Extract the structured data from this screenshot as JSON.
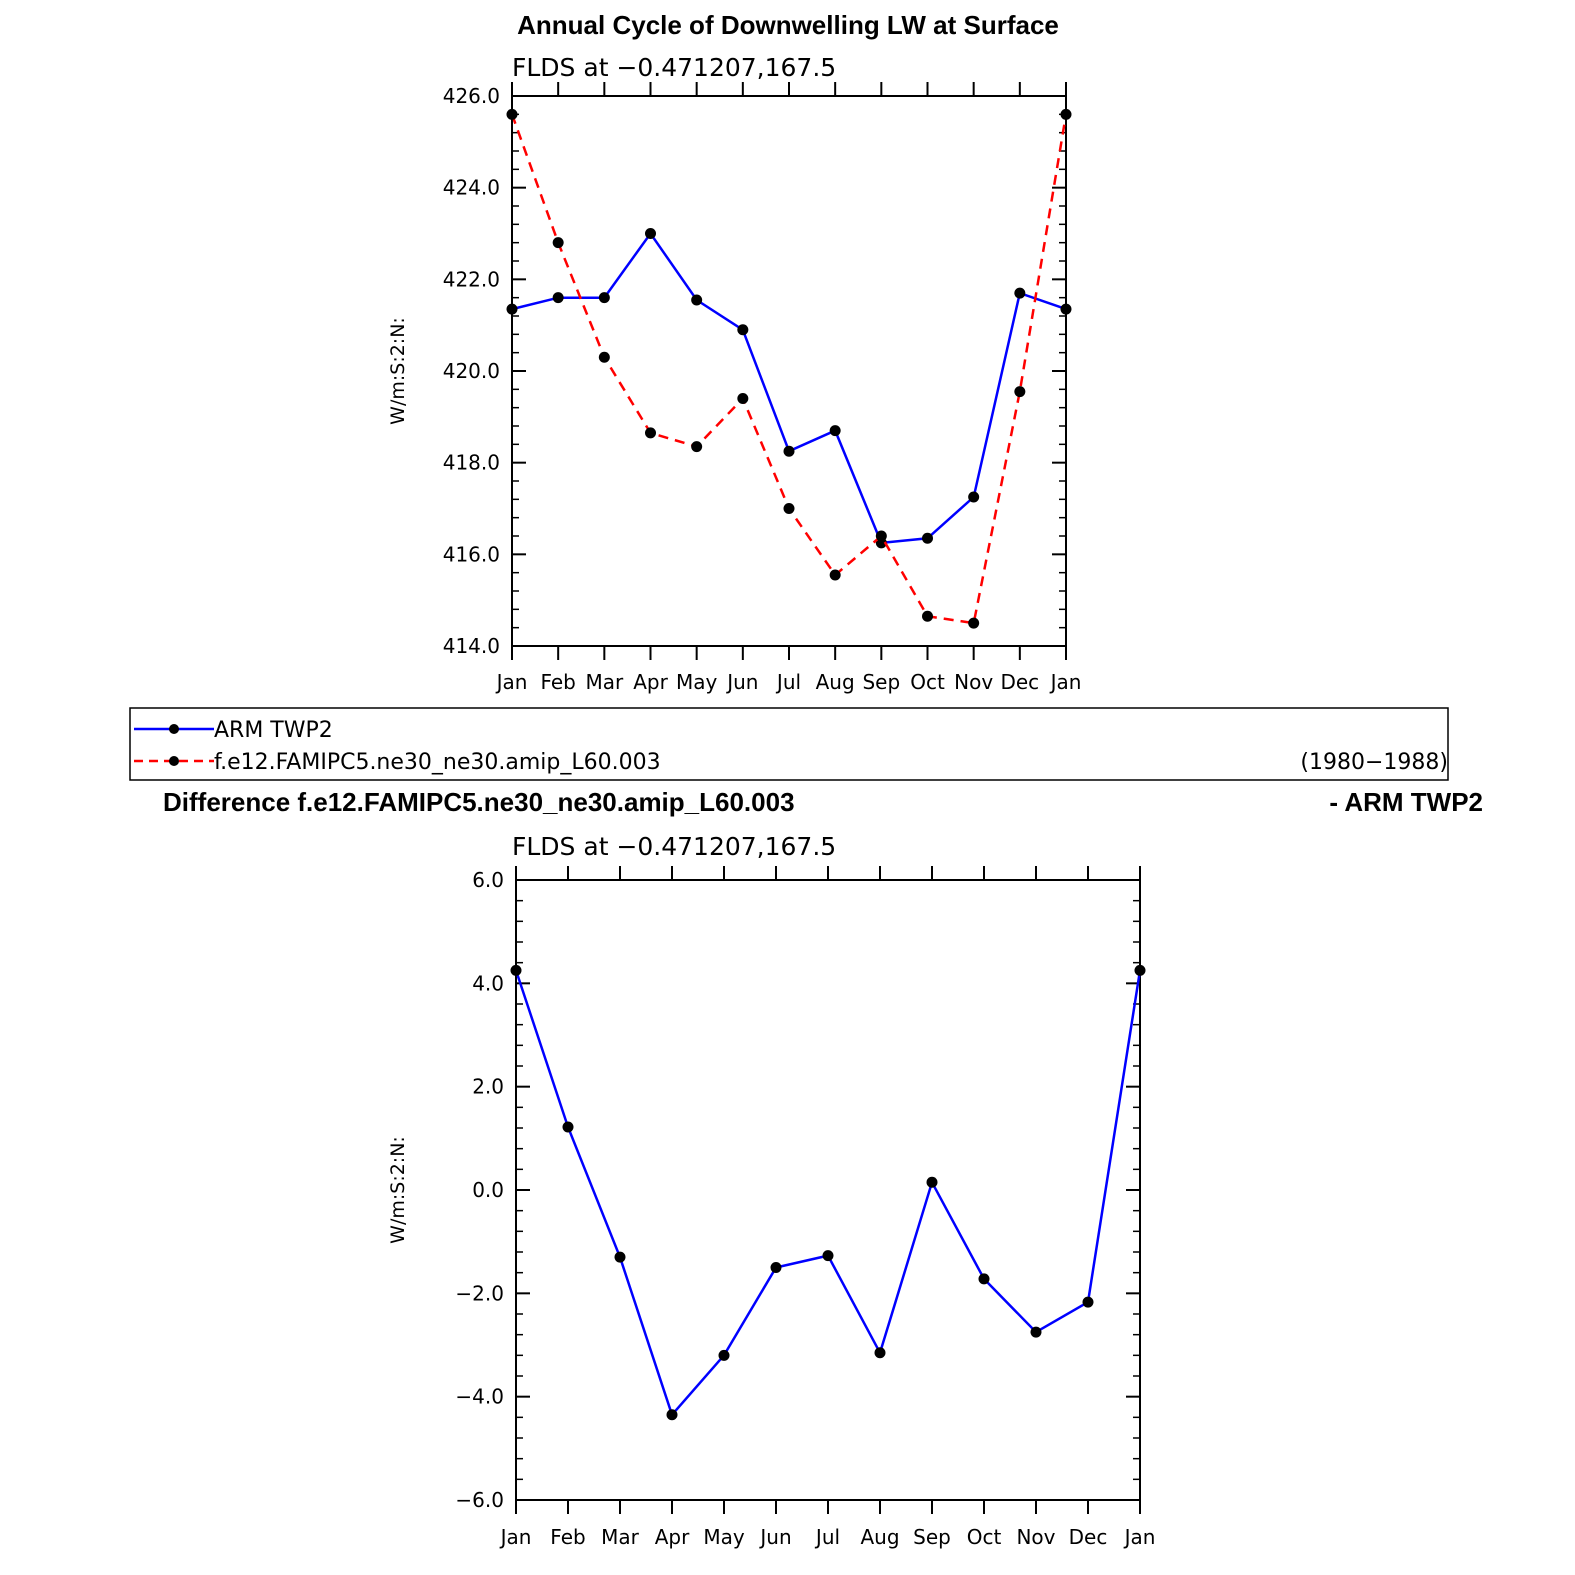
{
  "figure": {
    "top_title": "Annual Cycle of Downwelling LW at Surface",
    "diff_title_left": "Difference f.e12.FAMIPC5.ne30_ne30.amip_L60.003",
    "diff_title_right": "- ARM TWP2",
    "legend": {
      "entries": [
        "ARM TWP2",
        "f.e12.FAMIPC5.ne30_ne30.amip_L60.003"
      ],
      "period": "(1980−1988)"
    }
  },
  "chart_data": [
    {
      "type": "line",
      "title": "Annual Cycle of Downwelling LW at Surface",
      "subtitle": "FLDS at −0.471207,167.5",
      "ylabel": "W/m:S:2:N:",
      "categories": [
        "Jan",
        "Feb",
        "Mar",
        "Apr",
        "May",
        "Jun",
        "Jul",
        "Aug",
        "Sep",
        "Oct",
        "Nov",
        "Dec",
        "Jan"
      ],
      "ylim": [
        414.0,
        426.0
      ],
      "yticks": [
        414.0,
        416.0,
        418.0,
        420.0,
        422.0,
        424.0,
        426.0
      ],
      "ytick_labels": [
        "414.0",
        "416.0",
        "418.0",
        "420.0",
        "422.0",
        "424.0",
        "426.0"
      ],
      "series": [
        {
          "name": "ARM TWP2",
          "color": "#0000ff",
          "dash": "solid",
          "values": [
            421.35,
            421.6,
            421.6,
            423.0,
            421.55,
            420.9,
            418.25,
            418.7,
            416.25,
            416.35,
            417.25,
            421.7,
            421.35
          ]
        },
        {
          "name": "f.e12.FAMIPC5.ne30_ne30.amip_L60.003",
          "color": "#ff0000",
          "dash": "dashed",
          "values": [
            425.6,
            422.8,
            420.3,
            418.65,
            418.35,
            419.4,
            417.0,
            415.55,
            416.4,
            414.65,
            414.5,
            419.55,
            425.6
          ]
        }
      ]
    },
    {
      "type": "line",
      "subtitle": "FLDS at −0.471207,167.5",
      "ylabel": "W/m:S:2:N:",
      "categories": [
        "Jan",
        "Feb",
        "Mar",
        "Apr",
        "May",
        "Jun",
        "Jul",
        "Aug",
        "Sep",
        "Oct",
        "Nov",
        "Dec",
        "Jan"
      ],
      "ylim": [
        -6.0,
        6.0
      ],
      "yticks": [
        -6.0,
        -4.0,
        -2.0,
        0.0,
        2.0,
        4.0,
        6.0
      ],
      "ytick_labels": [
        "−6.0",
        "−4.0",
        "−2.0",
        "0.0",
        "2.0",
        "4.0",
        "6.0"
      ],
      "series": [
        {
          "color": "#0000ff",
          "dash": "solid",
          "values": [
            4.25,
            1.22,
            -1.3,
            -4.35,
            -3.2,
            -1.5,
            -1.27,
            -3.15,
            0.15,
            -1.72,
            -2.75,
            -2.17,
            4.25
          ]
        }
      ]
    }
  ]
}
